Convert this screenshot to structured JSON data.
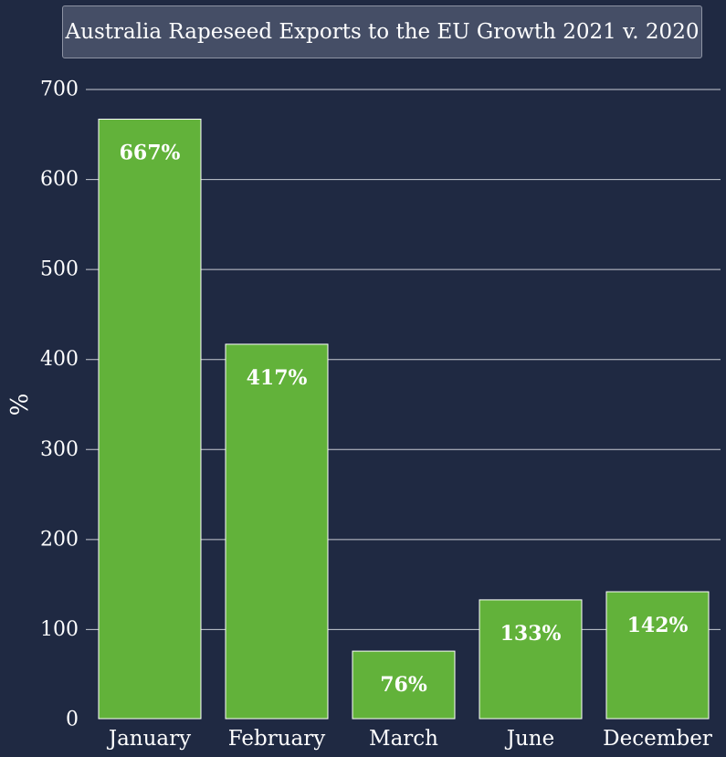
{
  "chart_data": {
    "type": "bar",
    "title": "Australia Rapeseed Exports to the EU Growth 2021 v. 2020",
    "xlabel": "",
    "ylabel": "%",
    "categories": [
      "January",
      "February",
      "March",
      "June",
      "December"
    ],
    "values": [
      667,
      417,
      76,
      133,
      142
    ],
    "value_labels": [
      "667%",
      "417%",
      "76%",
      "133%",
      "142%"
    ],
    "ylim": [
      0,
      700
    ],
    "yticks": [
      0,
      100,
      200,
      300,
      400,
      500,
      600,
      700
    ],
    "grid": true,
    "legend": "none"
  },
  "colors": {
    "background": "#1f2942",
    "bar": "#62b23a",
    "bar_edge": "#ffffff",
    "grid": "#c9ccd4",
    "title_box": "#454e66"
  }
}
